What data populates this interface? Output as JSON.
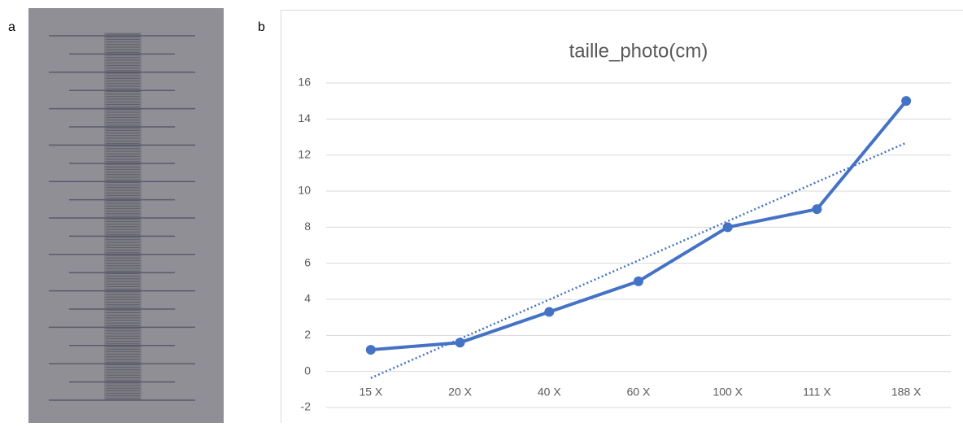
{
  "panel_labels": [
    "a",
    "b"
  ],
  "chart_data": {
    "type": "line",
    "title": "taille_photo(cm)",
    "categories": [
      "15 X",
      "20 X",
      "40 X",
      "60 X",
      "100 X",
      "111 X",
      "188 X"
    ],
    "series": [
      {
        "name": "taille_photo(cm)",
        "color": "#4472c4",
        "values": [
          1.2,
          1.6,
          3.3,
          5.0,
          8.0,
          9.0,
          15.0
        ]
      }
    ],
    "trendline": "linear",
    "ylim": [
      -2,
      16
    ],
    "yticks": [
      -2,
      0,
      2,
      4,
      6,
      8,
      10,
      12,
      14,
      16
    ],
    "grid": true
  }
}
